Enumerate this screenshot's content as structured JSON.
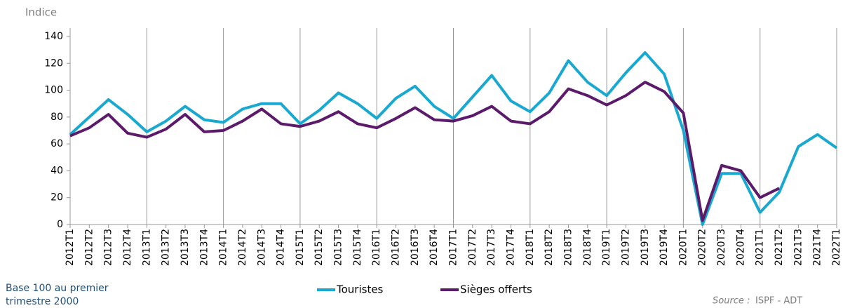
{
  "chart_data": {
    "type": "line",
    "y_label": "Indice",
    "note_line1": "Base 100 au premier",
    "note_line2": "trimestre 2000",
    "source_label": "Source :",
    "source": "ISPF - ADT",
    "categories": [
      "2012T1",
      "2012T2",
      "2012T3",
      "2012T4",
      "2013T1",
      "2013T2",
      "2013T3",
      "2013T4",
      "2014T1",
      "2014T2",
      "2014T3",
      "2014T4",
      "2015T1",
      "2015T2",
      "2015T3",
      "2015T4",
      "2016T1",
      "2016T2",
      "2016T3",
      "2016T4",
      "2017T1",
      "2017T2",
      "2017T3",
      "2017T4",
      "2018T1",
      "2018T2",
      "2018T3",
      "2018T4",
      "2019T1",
      "2019T2",
      "2019T3",
      "2019T4",
      "2020T1",
      "2020T2",
      "2020T3",
      "2020T4",
      "2021T1",
      "2021T2",
      "2021T3",
      "2021T4",
      "2022T1"
    ],
    "series": [
      {
        "name": "Touristes",
        "color": "#19a8d0",
        "values": [
          67,
          80,
          93,
          82,
          69,
          77,
          88,
          78,
          76,
          86,
          90,
          90,
          75,
          85,
          98,
          90,
          79,
          94,
          103,
          88,
          79,
          95,
          111,
          92,
          84,
          98,
          122,
          106,
          96,
          113,
          128,
          112,
          70,
          0,
          38,
          38,
          9,
          24,
          58,
          67,
          57
        ]
      },
      {
        "name": "Sièges offerts",
        "color": "#5c1a6b",
        "values": [
          66,
          72,
          82,
          68,
          65,
          71,
          82,
          69,
          70,
          77,
          86,
          75,
          73,
          77,
          84,
          75,
          72,
          79,
          87,
          78,
          77,
          81,
          88,
          77,
          75,
          84,
          101,
          96,
          89,
          96,
          106,
          99,
          83,
          3,
          44,
          40,
          20,
          27,
          null,
          null,
          null
        ]
      }
    ],
    "ylim": [
      0,
      140
    ],
    "yticks": [
      0,
      20,
      40,
      60,
      80,
      100,
      120,
      140
    ],
    "grid": false
  }
}
